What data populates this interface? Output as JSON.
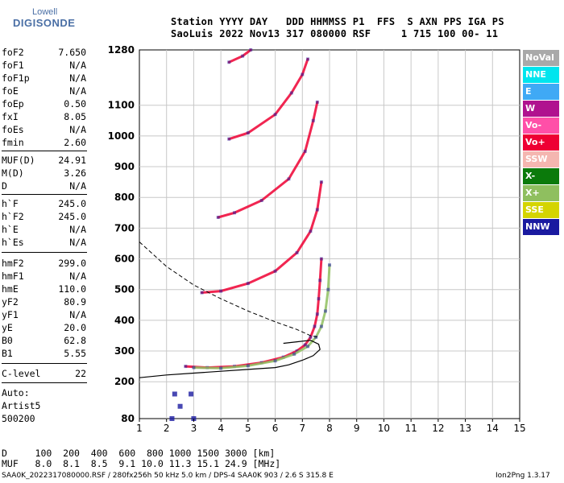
{
  "logo": {
    "top": "Lowell",
    "main": "DIGISONDE"
  },
  "header": {
    "line1": "Station YYYY DAY   DDD HHMMSS P1  FFS  S AXN PPS IGA PS",
    "line2": "SaoLuis 2022 Nov13 317 080000 RSF     1 715 100 00- 11"
  },
  "params": {
    "g1": [
      {
        "k": "foF2",
        "v": "7.650"
      },
      {
        "k": "foF1",
        "v": "N/A"
      },
      {
        "k": "foF1p",
        "v": "N/A"
      },
      {
        "k": "foE",
        "v": "N/A"
      },
      {
        "k": "foEp",
        "v": "0.50"
      },
      {
        "k": "fxI",
        "v": "8.05"
      },
      {
        "k": "foEs",
        "v": "N/A"
      },
      {
        "k": "fmin",
        "v": "2.60"
      }
    ],
    "g2": [
      {
        "k": "MUF(D)",
        "v": "24.91"
      },
      {
        "k": "M(D)",
        "v": "3.26"
      },
      {
        "k": "D",
        "v": "N/A"
      }
    ],
    "g3": [
      {
        "k": "h`F",
        "v": "245.0"
      },
      {
        "k": "h`F2",
        "v": "245.0"
      },
      {
        "k": "h`E",
        "v": "N/A"
      },
      {
        "k": "h`Es",
        "v": "N/A"
      }
    ],
    "g4": [
      {
        "k": "hmF2",
        "v": "299.0"
      },
      {
        "k": "hmF1",
        "v": "N/A"
      },
      {
        "k": "hmE",
        "v": "110.0"
      },
      {
        "k": "yF2",
        "v": "80.9"
      },
      {
        "k": "yF1",
        "v": "N/A"
      },
      {
        "k": "yE",
        "v": "20.0"
      },
      {
        "k": "B0",
        "v": "62.8"
      },
      {
        "k": "B1",
        "v": "5.55"
      }
    ],
    "clevel": {
      "k": "C-level",
      "v": "22"
    },
    "auto": [
      "Auto:",
      "Artist5",
      "500200"
    ]
  },
  "legend": [
    {
      "label": "NoVal",
      "color": "#a9a9a9"
    },
    {
      "label": "NNE",
      "color": "#00e5ee"
    },
    {
      "label": "E",
      "color": "#3fa9f5"
    },
    {
      "label": "W",
      "color": "#b0128f"
    },
    {
      "label": "Vo-",
      "color": "#ff4fa8"
    },
    {
      "label": "Vo+",
      "color": "#ee0033"
    },
    {
      "label": "SSW",
      "color": "#f4b6b0"
    },
    {
      "label": "X-",
      "color": "#0b7a0b"
    },
    {
      "label": "X+",
      "color": "#8fbf5f"
    },
    {
      "label": "SSE",
      "color": "#d4d400"
    },
    {
      "label": "NNW",
      "color": "#1a1aa0"
    }
  ],
  "bottom": {
    "d_line": "D     100  200  400  600  800 1000 1500 3000 [km]",
    "muf_line": "MUF   8.0  8.1  8.5  9.1 10.0 11.3 15.1 24.9 [MHz]"
  },
  "footer": {
    "left": "SAA0K_2022317080000.RSF / 280fx256h 50 kHz 5.0 km / DPS-4 SAA0K 903 / 2.6 S 315.8 E",
    "right": "Ion2Png 1.3.17"
  },
  "chart_data": {
    "type": "scatter",
    "xlim": [
      1,
      15
    ],
    "ylim": [
      80,
      1280
    ],
    "xticks": [
      "1",
      "2",
      "3",
      "4",
      "5",
      "6",
      "7",
      "8",
      "9",
      "10",
      "11",
      "12",
      "13",
      "14",
      "15"
    ],
    "yticks": [
      {
        "v": 80,
        "label": "80"
      },
      {
        "v": 200,
        "label": "200"
      },
      {
        "v": 300,
        "label": "300"
      },
      {
        "v": 400,
        "label": "400"
      },
      {
        "v": 500,
        "label": "500"
      },
      {
        "v": 600,
        "label": "600"
      },
      {
        "v": 700,
        "label": "700"
      },
      {
        "v": 800,
        "label": "800"
      },
      {
        "v": 900,
        "label": "900"
      },
      {
        "v": 1000,
        "label": "1000"
      },
      {
        "v": 1100,
        "label": "1100"
      },
      {
        "v": 1280,
        "label": "1280"
      }
    ],
    "grid": true,
    "traces": [
      {
        "color": "#ee0033",
        "points": [
          [
            2.7,
            250
          ],
          [
            3.5,
            246
          ],
          [
            4.5,
            250
          ],
          [
            5.5,
            262
          ],
          [
            6.3,
            280
          ],
          [
            6.8,
            300
          ],
          [
            7.1,
            320
          ],
          [
            7.3,
            345
          ],
          [
            7.45,
            380
          ],
          [
            7.55,
            420
          ],
          [
            7.6,
            470
          ],
          [
            7.65,
            530
          ],
          [
            7.7,
            600
          ]
        ]
      },
      {
        "color": "#8fbf5f",
        "points": [
          [
            3.0,
            246
          ],
          [
            4.0,
            244
          ],
          [
            5.0,
            252
          ],
          [
            6.0,
            268
          ],
          [
            6.7,
            290
          ],
          [
            7.2,
            315
          ],
          [
            7.5,
            345
          ],
          [
            7.7,
            380
          ],
          [
            7.85,
            430
          ],
          [
            7.95,
            500
          ],
          [
            8.0,
            580
          ]
        ]
      },
      {
        "color": "#ee0033",
        "points": [
          [
            3.3,
            490
          ],
          [
            4.0,
            495
          ],
          [
            5.0,
            520
          ],
          [
            6.0,
            560
          ],
          [
            6.8,
            620
          ],
          [
            7.3,
            690
          ],
          [
            7.55,
            760
          ],
          [
            7.7,
            850
          ]
        ]
      },
      {
        "color": "#ee0033",
        "points": [
          [
            3.9,
            735
          ],
          [
            4.5,
            750
          ],
          [
            5.5,
            790
          ],
          [
            6.5,
            860
          ],
          [
            7.1,
            950
          ],
          [
            7.4,
            1050
          ],
          [
            7.55,
            1110
          ]
        ]
      },
      {
        "color": "#ee0033",
        "points": [
          [
            4.3,
            990
          ],
          [
            5.0,
            1010
          ],
          [
            6.0,
            1070
          ],
          [
            6.6,
            1140
          ],
          [
            7.0,
            1200
          ],
          [
            7.2,
            1250
          ]
        ]
      },
      {
        "color": "#ee0033",
        "points": [
          [
            4.3,
            1240
          ],
          [
            4.8,
            1260
          ],
          [
            5.1,
            1280
          ]
        ]
      }
    ],
    "profile": [
      [
        1,
        213
      ],
      [
        2,
        222
      ],
      [
        3,
        228
      ],
      [
        4,
        234
      ],
      [
        5,
        240
      ],
      [
        6,
        246
      ],
      [
        6.5,
        255
      ],
      [
        7.0,
        270
      ],
      [
        7.4,
        285
      ],
      [
        7.65,
        305
      ],
      [
        7.6,
        322
      ],
      [
        7.3,
        335
      ],
      [
        6.8,
        330
      ],
      [
        6.3,
        325
      ]
    ],
    "muf_curve": [
      [
        1,
        655
      ],
      [
        1.5,
        615
      ],
      [
        2,
        575
      ],
      [
        3,
        515
      ],
      [
        4,
        470
      ],
      [
        5,
        430
      ],
      [
        6,
        395
      ],
      [
        6.8,
        370
      ],
      [
        7.3,
        350
      ],
      [
        7.6,
        345
      ]
    ],
    "lowband": [
      [
        2.2,
        80
      ],
      [
        3,
        80
      ],
      [
        2.3,
        160
      ],
      [
        2.9,
        160
      ],
      [
        2.5,
        120
      ]
    ]
  }
}
